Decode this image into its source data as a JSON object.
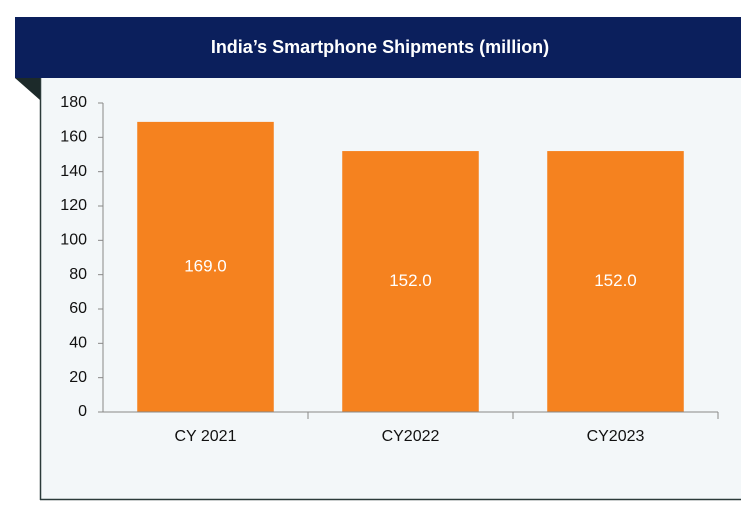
{
  "chart_data": {
    "type": "bar",
    "title": "India’s Smartphone Shipments (million)",
    "categories": [
      "CY 2021",
      "CY2022",
      "CY2023"
    ],
    "values": [
      169,
      152,
      152
    ],
    "value_labels": [
      "169.0",
      "152.0",
      "152.0"
    ],
    "color": "#f5821f",
    "ylim": [
      0,
      180
    ],
    "yticks": [
      0,
      20,
      40,
      60,
      80,
      100,
      120,
      140,
      160,
      180
    ],
    "grid": false
  }
}
